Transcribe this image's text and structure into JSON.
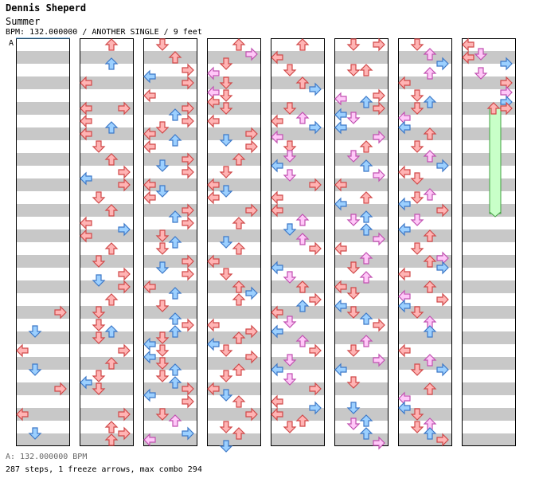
{
  "header": {
    "artist": "Dennis Sheperd",
    "song": "Summer",
    "meta": "BPM: 132.000000 / ANOTHER SINGLE / 9 feet"
  },
  "chart": {
    "bpm_marker": "A",
    "columns": 8,
    "colors": {
      "red_fill": "#ffb4b4",
      "red_stroke": "#d04848",
      "blue_fill": "#9cd0ff",
      "blue_stroke": "#3c78c8",
      "pink_fill": "#ffc8f8",
      "pink_stroke": "#c050b0",
      "freeze_fill": "#c8ffc8",
      "freeze_stroke": "#40a040",
      "stripe": "#c8c8c8",
      "marker_line": "#3c8cc8"
    }
  },
  "footer": {
    "bpm_line": "A: 132.000000 BPM",
    "stats_line": "287 steps, 1 freeze arrows, max combo 294"
  }
}
